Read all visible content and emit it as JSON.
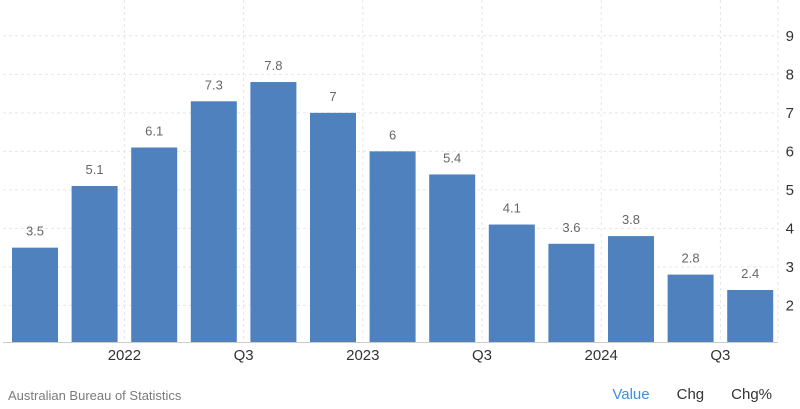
{
  "chart_data": {
    "type": "bar",
    "title": "",
    "xlabel": "",
    "ylabel": "",
    "x": [
      "2022-Q1",
      "2022-Q2",
      "2022-Q3",
      "2022-Q4",
      "2023-Q1",
      "2023-Q2",
      "2023-Q3",
      "2023-Q4",
      "2024-Q1",
      "2024-Q2",
      "2024-Q3",
      "2024-Q4",
      "2025-Q1"
    ],
    "values": [
      3.5,
      5.1,
      6.1,
      7.3,
      7.8,
      7,
      6,
      5.4,
      4.1,
      3.6,
      3.8,
      2.8,
      2.4
    ],
    "data_labels": [
      "3.5",
      "5.1",
      "6.1",
      "7.3",
      "7.8",
      "7",
      "6",
      "5.4",
      "4.1",
      "3.6",
      "3.8",
      "2.8",
      "2.4"
    ],
    "x_tick_labels": [
      {
        "index": 1.5,
        "label": "2022"
      },
      {
        "index": 3.5,
        "label": "Q3"
      },
      {
        "index": 5.5,
        "label": "2023"
      },
      {
        "index": 7.5,
        "label": "Q3"
      },
      {
        "index": 9.5,
        "label": "2024"
      },
      {
        "index": 11.5,
        "label": "Q3"
      }
    ],
    "y_ticks": [
      2,
      3,
      4,
      5,
      6,
      7,
      8,
      9
    ],
    "ylim": [
      1.05,
      9.8
    ],
    "y_axis_side": "right",
    "grid": true,
    "bar_color": "#4e81bd"
  },
  "footer": {
    "source": "Australian Bureau of Statistics",
    "tabs": [
      {
        "label": "Value",
        "active": true
      },
      {
        "label": "Chg",
        "active": false
      },
      {
        "label": "Chg%",
        "active": false
      }
    ],
    "active_color": "#3c8fde"
  }
}
